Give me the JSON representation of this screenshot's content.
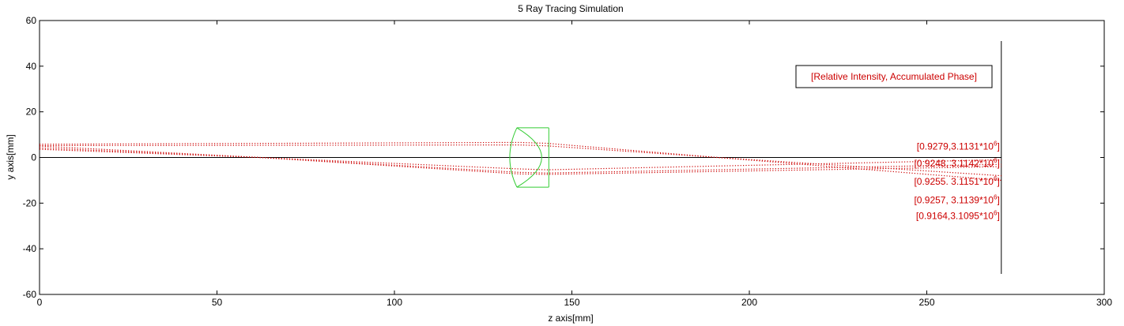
{
  "chart_data": {
    "type": "line",
    "title": "5 Ray Tracing Simulation",
    "xlabel": "z axis[mm]",
    "ylabel": "y axis[mm]",
    "xlim": [
      0,
      300
    ],
    "ylim": [
      -60,
      60
    ],
    "xticks": [
      0,
      50,
      100,
      150,
      200,
      250,
      300
    ],
    "yticks": [
      -60,
      -40,
      -20,
      0,
      20,
      40,
      60
    ],
    "grid": false,
    "ray_color": "#cc0000",
    "lens_color": "#33cc33",
    "optical_axis": {
      "x": [
        0,
        271
      ],
      "y": [
        0,
        0
      ]
    },
    "screen": {
      "x": [
        271,
        271
      ],
      "y": [
        -51,
        51
      ]
    },
    "lens": {
      "z_left": 134.5,
      "z_right": 143.5,
      "half_aperture": 13,
      "front_surface_vertex": 132.5,
      "back_surface_vertex": 141.5
    },
    "rays": [
      {
        "x": [
          0,
          135,
          143,
          191,
          271
        ],
        "y": [
          5.8,
          6.6,
          6.2,
          0.0,
          -10.0
        ]
      },
      {
        "x": [
          0,
          135,
          143,
          191,
          271
        ],
        "y": [
          5.2,
          5.5,
          5.1,
          0.0,
          -8.0
        ]
      },
      {
        "x": [
          0,
          62,
          135,
          143,
          271
        ],
        "y": [
          5.0,
          0.0,
          -5.0,
          -5.4,
          -1.0
        ]
      },
      {
        "x": [
          0,
          62,
          135,
          143,
          271
        ],
        "y": [
          4.2,
          0.0,
          -6.5,
          -6.8,
          -3.0
        ]
      },
      {
        "x": [
          0,
          62,
          135,
          143,
          271
        ],
        "y": [
          3.6,
          0.0,
          -7.2,
          -7.4,
          -4.0
        ]
      }
    ],
    "legend": {
      "text": "[Relative Intensity, Accumulated Phase]",
      "placement": "top-right"
    },
    "annotations": [
      {
        "text": "[0.9279,3.1131*10",
        "sup": "6",
        "close": "]",
        "x": 271,
        "y": 3.5
      },
      {
        "text": "[0.9248, 3.1142*10",
        "sup": "6",
        "close": "]",
        "x": 271,
        "y": -4.0
      },
      {
        "text": "[0.9255. 3.1151*10",
        "sup": "6",
        "close": "]",
        "x": 271,
        "y": -12.0
      },
      {
        "text": "[0.9257, 3.1139*10",
        "sup": "6",
        "close": "]",
        "x": 271,
        "y": -20.0
      },
      {
        "text": "[0.9164,3.1095*10",
        "sup": "6",
        "close": "]",
        "x": 271,
        "y": -27.0
      }
    ]
  }
}
